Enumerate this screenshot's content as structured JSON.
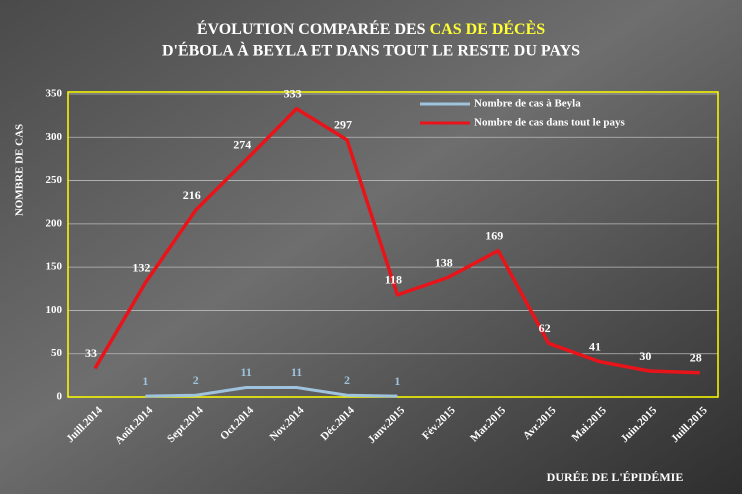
{
  "chart_data": {
    "type": "line",
    "title": [
      "ÉVOLUTION COMPARÉE DES",
      "CAS DE DÉCÈS",
      "D'ÉBOLA À BEYLA ET DANS TOUT LE RESTE DU PAYS"
    ],
    "title_highlight_color": "#ffff33",
    "y_label": "NOMBRE DE CAS",
    "x_label": "DURÉE DE L'ÉPIDÉMIE",
    "categories": [
      "Juill.2014",
      "Août.2014",
      "Sept.2014",
      "Oct.2014",
      "Nov.2014",
      "Déc.2014",
      "Janv.2015",
      "Fév.2015",
      "Mar.2015",
      "Avr.2015",
      "Mai.2015",
      "Juin.2015",
      "Juill.2015"
    ],
    "series": [
      {
        "name": "Nombre de cas à Beyla",
        "color": "#9fc3dc",
        "values": [
          null,
          1,
          2,
          11,
          11,
          2,
          1,
          null,
          null,
          null,
          null,
          null,
          null
        ]
      },
      {
        "name": "Nombre de cas dans tout le pays",
        "color": "#e8141a",
        "values": [
          33,
          132,
          216,
          274,
          333,
          297,
          118,
          138,
          169,
          62,
          41,
          30,
          28
        ]
      }
    ],
    "ylim": [
      0,
      350
    ],
    "yticks": [
      0,
      50,
      100,
      150,
      200,
      250,
      300,
      350
    ],
    "grid": true,
    "legend": "top-right",
    "frame_color": "#ffff00"
  }
}
